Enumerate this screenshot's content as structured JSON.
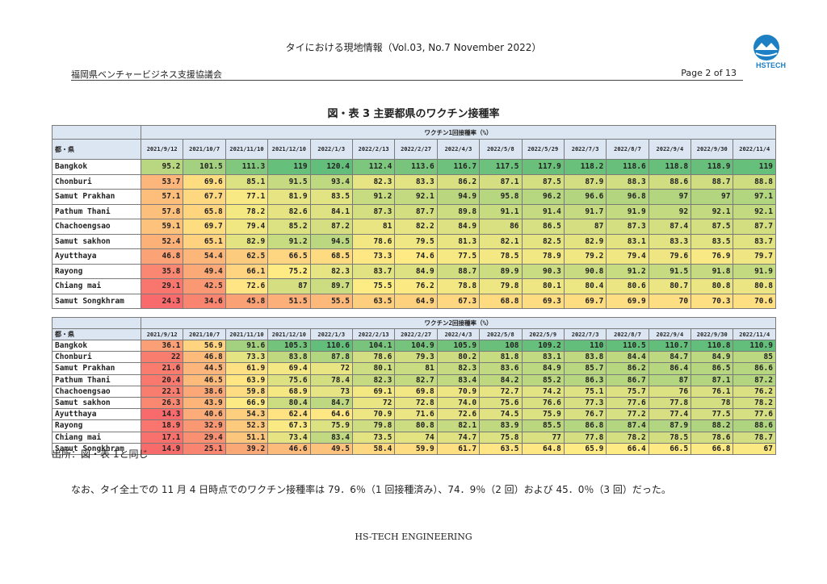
{
  "header": {
    "title": "タイにおける現地情報（Vol.03, No.7 November 2022）",
    "organization": "福岡県ベンチャービジネス支援協議会",
    "page": "Page  2  of  13",
    "logo_text": "HSTECH"
  },
  "figure_title": "図・表 3  主要都県のワクチン接種率",
  "prefecture_label": "都・県",
  "table1": {
    "group_label": "ワクチン1回接種率（%）",
    "dates": [
      "2021/9/12",
      "2021/10/7",
      "2021/11/10",
      "2021/12/10",
      "2022/1/3",
      "2022/2/13",
      "2022/2/27",
      "2022/4/3",
      "2022/5/8",
      "2022/5/29",
      "2022/7/3",
      "2022/8/7",
      "2022/9/4",
      "2022/9/30",
      "2022/11/4"
    ],
    "rows": [
      {
        "name": "Bangkok",
        "values": [
          "95.2",
          "101.5",
          "111.3",
          "119",
          "120.4",
          "112.4",
          "113.6",
          "116.7",
          "117.5",
          "117.9",
          "118.2",
          "118.6",
          "118.8",
          "118.9",
          "119"
        ]
      },
      {
        "name": "Chonburi",
        "values": [
          "53.7",
          "69.6",
          "85.1",
          "91.5",
          "93.4",
          "82.3",
          "83.3",
          "86.2",
          "87.1",
          "87.5",
          "87.9",
          "88.3",
          "88.6",
          "88.7",
          "88.8"
        ]
      },
      {
        "name": "Samut Prakhan",
        "values": [
          "57.1",
          "67.7",
          "77.1",
          "81.9",
          "83.5",
          "91.2",
          "92.1",
          "94.9",
          "95.8",
          "96.2",
          "96.6",
          "96.8",
          "97",
          "97",
          "97.1"
        ]
      },
      {
        "name": "Pathum Thani",
        "values": [
          "57.8",
          "65.8",
          "78.2",
          "82.6",
          "84.1",
          "87.3",
          "87.7",
          "89.8",
          "91.1",
          "91.4",
          "91.7",
          "91.9",
          "92",
          "92.1",
          "92.1"
        ]
      },
      {
        "name": "Chachoengsao",
        "values": [
          "59.1",
          "69.7",
          "79.4",
          "85.2",
          "87.2",
          "81",
          "82.2",
          "84.9",
          "86",
          "86.5",
          "87",
          "87.3",
          "87.4",
          "87.5",
          "87.7"
        ]
      },
      {
        "name": "Samut sakhon",
        "values": [
          "52.4",
          "65.1",
          "82.9",
          "91.2",
          "94.5",
          "78.6",
          "79.5",
          "81.3",
          "82.1",
          "82.5",
          "82.9",
          "83.1",
          "83.3",
          "83.5",
          "83.7"
        ]
      },
      {
        "name": "Ayutthaya",
        "values": [
          "46.8",
          "54.4",
          "62.5",
          "66.5",
          "68.5",
          "73.3",
          "74.6",
          "77.5",
          "78.5",
          "78.9",
          "79.2",
          "79.4",
          "79.6",
          "76.9",
          "79.7"
        ]
      },
      {
        "name": "Rayong",
        "values": [
          "35.8",
          "49.4",
          "66.1",
          "75.2",
          "82.3",
          "83.7",
          "84.9",
          "88.7",
          "89.9",
          "90.3",
          "90.8",
          "91.2",
          "91.5",
          "91.8",
          "91.9"
        ]
      },
      {
        "name": "Chiang mai",
        "values": [
          "29.1",
          "42.5",
          "72.6",
          "87",
          "89.7",
          "75.5",
          "76.2",
          "78.8",
          "79.8",
          "80.1",
          "80.4",
          "80.6",
          "80.7",
          "80.8",
          "80.8"
        ]
      },
      {
        "name": "Samut Songkhram",
        "values": [
          "24.3",
          "34.6",
          "45.8",
          "51.5",
          "55.5",
          "63.5",
          "64.9",
          "67.3",
          "68.8",
          "69.3",
          "69.7",
          "69.9",
          "70",
          "70.3",
          "70.6"
        ]
      }
    ]
  },
  "table2": {
    "group_label": "ワクチン2回接種率（%）",
    "dates": [
      "2021/9/12",
      "2021/10/7",
      "2021/11/10",
      "2021/12/10",
      "2022/1/3",
      "2022/2/13",
      "2022/2/27",
      "2022/4/3",
      "2022/5/8",
      "2022/5/9",
      "2022/7/3",
      "2022/8/7",
      "2022/9/4",
      "2022/9/30",
      "2022/11/4"
    ],
    "rows": [
      {
        "name": "Bangkok",
        "values": [
          "36.1",
          "56.9",
          "91.6",
          "105.3",
          "110.6",
          "104.1",
          "104.9",
          "105.9",
          "108",
          "109.2",
          "110",
          "110.5",
          "110.7",
          "110.8",
          "110.9"
        ]
      },
      {
        "name": "Chonburi",
        "values": [
          "22",
          "46.8",
          "73.3",
          "83.8",
          "87.8",
          "78.6",
          "79.3",
          "80.2",
          "81.8",
          "83.1",
          "83.8",
          "84.4",
          "84.7",
          "84.9",
          "85"
        ]
      },
      {
        "name": "Samut Prakhan",
        "values": [
          "21.6",
          "44.5",
          "61.9",
          "69.4",
          "72",
          "80.1",
          "81",
          "82.3",
          "83.6",
          "84.9",
          "85.7",
          "86.2",
          "86.4",
          "86.5",
          "86.6"
        ]
      },
      {
        "name": "Pathum Thani",
        "values": [
          "20.4",
          "46.5",
          "63.9",
          "75.6",
          "78.4",
          "82.3",
          "82.7",
          "83.4",
          "84.2",
          "85.2",
          "86.3",
          "86.7",
          "87",
          "87.1",
          "87.2"
        ]
      },
      {
        "name": "Chachoengsao",
        "values": [
          "22.1",
          "38.6",
          "59.8",
          "68.9",
          "73",
          "69.1",
          "69.8",
          "70.9",
          "72.7",
          "74.2",
          "75.1",
          "75.7",
          "76",
          "76.1",
          "76.2"
        ]
      },
      {
        "name": "Samut sakhon",
        "values": [
          "26.3",
          "43.9",
          "66.9",
          "80.4",
          "84.7",
          "72",
          "72.8",
          "74.0",
          "75.6",
          "76.6",
          "77.3",
          "77.6",
          "77.8",
          "78",
          "78.2"
        ]
      },
      {
        "name": "Ayutthaya",
        "values": [
          "14.3",
          "40.6",
          "54.3",
          "62.4",
          "64.6",
          "70.9",
          "71.6",
          "72.6",
          "74.5",
          "75.9",
          "76.7",
          "77.2",
          "77.4",
          "77.5",
          "77.6"
        ]
      },
      {
        "name": "Rayong",
        "values": [
          "18.9",
          "32.9",
          "52.3",
          "67.3",
          "75.9",
          "79.8",
          "80.8",
          "82.1",
          "83.9",
          "85.5",
          "86.8",
          "87.4",
          "87.9",
          "88.2",
          "88.6"
        ]
      },
      {
        "name": "Chiang mai",
        "values": [
          "17.1",
          "29.4",
          "51.1",
          "73.4",
          "83.4",
          "73.5",
          "74",
          "74.7",
          "75.8",
          "77",
          "77.8",
          "78.2",
          "78.5",
          "78.6",
          "78.7"
        ]
      },
      {
        "name": "Samut Songkhram",
        "values": [
          "14.9",
          "25.1",
          "39.2",
          "46.6",
          "49.5",
          "58.4",
          "59.9",
          "61.7",
          "63.5",
          "64.8",
          "65.9",
          "66.4",
          "66.5",
          "66.8",
          "67"
        ]
      }
    ]
  },
  "source_text": "出所：図・表  1と同じ",
  "note_text": "なお、タイ全土での 11 月 4 日時点でのワクチン接種率は 79．6％（1 回接種済み）、74．9％（2 回）および 45．0％（3 回）だった。",
  "footer_text": "HS-TECH ENGINEERING",
  "colors": {
    "header_fill": "#dce6f2",
    "low": "#f8696b",
    "mid": "#ffeb84",
    "high": "#63be7b",
    "logo_blue": "#1d7fc4"
  }
}
